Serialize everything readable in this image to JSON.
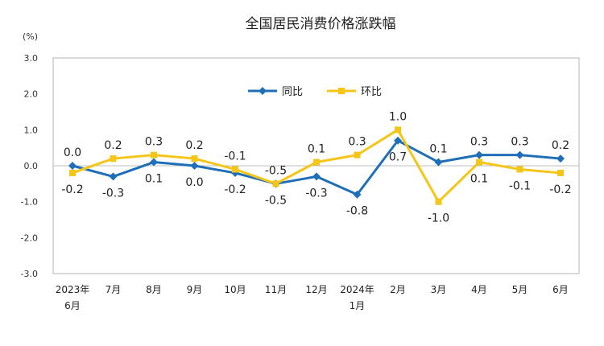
{
  "chart_data": {
    "type": "line",
    "title": "全国居民消费价格涨跌幅",
    "ylabel": "(%)",
    "ylim": [
      -3.0,
      3.0
    ],
    "yticks": [
      "3.0",
      "2.0",
      "1.0",
      "0.0",
      "-1.0",
      "-2.0",
      "-3.0"
    ],
    "categories": [
      [
        "2023年",
        "6月"
      ],
      [
        "7月"
      ],
      [
        "8月"
      ],
      [
        "9月"
      ],
      [
        "10月"
      ],
      [
        "11月"
      ],
      [
        "12月"
      ],
      [
        "2024年",
        "1月"
      ],
      [
        "2月"
      ],
      [
        "3月"
      ],
      [
        "4月"
      ],
      [
        "5月"
      ],
      [
        "6月"
      ]
    ],
    "legend_position": "top-center",
    "series": [
      {
        "name": "同比",
        "color": "#1f6fb8",
        "marker": "diamond",
        "values": [
          0.0,
          -0.3,
          0.1,
          0.0,
          -0.2,
          -0.5,
          -0.3,
          -0.8,
          0.7,
          0.1,
          0.3,
          0.3,
          0.2
        ],
        "labels": [
          "0.0",
          "-0.3",
          "0.1",
          "0.0",
          "-0.2",
          "-0.5",
          "-0.3",
          "-0.8",
          "0.7",
          "0.1",
          "0.3",
          "0.3",
          "0.2"
        ]
      },
      {
        "name": "环比",
        "color": "#f5c518",
        "marker": "square",
        "values": [
          -0.2,
          0.2,
          0.3,
          0.2,
          -0.1,
          -0.5,
          0.1,
          0.3,
          1.0,
          -1.0,
          0.1,
          -0.1,
          -0.2
        ],
        "labels": [
          "-0.2",
          "0.2",
          "0.3",
          "0.2",
          "-0.1",
          "-0.5",
          "0.1",
          "0.3",
          "1.0",
          "-1.0",
          "0.1",
          "-0.1",
          "-0.2"
        ]
      }
    ]
  }
}
